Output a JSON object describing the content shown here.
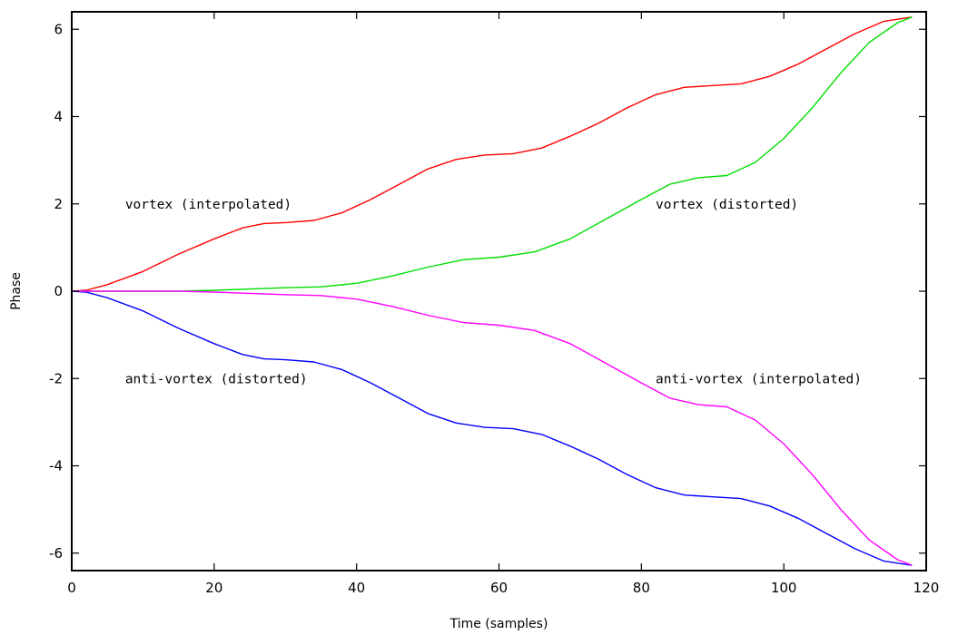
{
  "chart_data": {
    "type": "line",
    "title": "",
    "xlabel": "Time (samples)",
    "ylabel": "Phase",
    "xlim": [
      0,
      120
    ],
    "ylim": [
      -6.4,
      6.4
    ],
    "xticks": [
      0,
      20,
      40,
      60,
      80,
      100,
      120
    ],
    "yticks": [
      -6,
      -4,
      -2,
      0,
      2,
      4,
      6
    ],
    "grid": false,
    "legend": "none",
    "series": [
      {
        "color": "#ff0000",
        "x": [
          0,
          2,
          5,
          10,
          15,
          20,
          24,
          27,
          30,
          34,
          38,
          42,
          46,
          50,
          54,
          58,
          62,
          66,
          70,
          74,
          78,
          82,
          86,
          90,
          94,
          98,
          102,
          106,
          110,
          114,
          118
        ],
        "y": [
          0,
          0.02,
          0.15,
          0.45,
          0.85,
          1.2,
          1.45,
          1.55,
          1.57,
          1.62,
          1.8,
          2.1,
          2.45,
          2.8,
          3.02,
          3.12,
          3.15,
          3.28,
          3.55,
          3.85,
          4.2,
          4.5,
          4.67,
          4.71,
          4.75,
          4.92,
          5.2,
          5.55,
          5.9,
          6.18,
          6.28
        ]
      },
      {
        "color": "#00dd00",
        "x": [
          0,
          5,
          10,
          15,
          20,
          25,
          30,
          35,
          40,
          45,
          50,
          55,
          60,
          65,
          70,
          75,
          80,
          84,
          88,
          92,
          96,
          100,
          104,
          108,
          112,
          116,
          118
        ],
        "y": [
          0,
          0,
          0,
          0,
          0.02,
          0.05,
          0.08,
          0.1,
          0.18,
          0.35,
          0.55,
          0.72,
          0.78,
          0.9,
          1.2,
          1.65,
          2.1,
          2.45,
          2.6,
          2.65,
          2.95,
          3.5,
          4.2,
          5,
          5.7,
          6.15,
          6.28
        ]
      },
      {
        "color": "#0000ff",
        "x": [
          0,
          2,
          5,
          10,
          15,
          20,
          24,
          27,
          30,
          34,
          38,
          42,
          46,
          50,
          54,
          58,
          62,
          66,
          70,
          74,
          78,
          82,
          86,
          90,
          94,
          98,
          102,
          106,
          110,
          114,
          118
        ],
        "y": [
          0,
          -0.02,
          -0.15,
          -0.45,
          -0.85,
          -1.2,
          -1.45,
          -1.55,
          -1.57,
          -1.62,
          -1.8,
          -2.1,
          -2.45,
          -2.8,
          -3.02,
          -3.12,
          -3.15,
          -3.28,
          -3.55,
          -3.85,
          -4.2,
          -4.5,
          -4.67,
          -4.71,
          -4.75,
          -4.92,
          -5.2,
          -5.55,
          -5.9,
          -6.18,
          -6.28
        ]
      },
      {
        "color": "#ff00ff",
        "x": [
          0,
          5,
          10,
          15,
          20,
          25,
          30,
          35,
          40,
          45,
          50,
          55,
          60,
          65,
          70,
          75,
          80,
          84,
          88,
          92,
          96,
          100,
          104,
          108,
          112,
          116,
          118
        ],
        "y": [
          0,
          0,
          0,
          0,
          -0.02,
          -0.05,
          -0.08,
          -0.1,
          -0.18,
          -0.35,
          -0.55,
          -0.72,
          -0.78,
          -0.9,
          -1.2,
          -1.65,
          -2.1,
          -2.45,
          -2.6,
          -2.65,
          -2.95,
          -3.5,
          -4.2,
          -5,
          -5.7,
          -6.15,
          -6.28
        ]
      }
    ],
    "annotations": [
      {
        "text": "vortex (interpolated)",
        "x": 7.5,
        "y": 2
      },
      {
        "text": "vortex (distorted)",
        "x": 82,
        "y": 2
      },
      {
        "text": "anti-vortex (distorted)",
        "x": 7.5,
        "y": -2
      },
      {
        "text": "anti-vortex (interpolated)",
        "x": 82,
        "y": -2
      }
    ]
  }
}
